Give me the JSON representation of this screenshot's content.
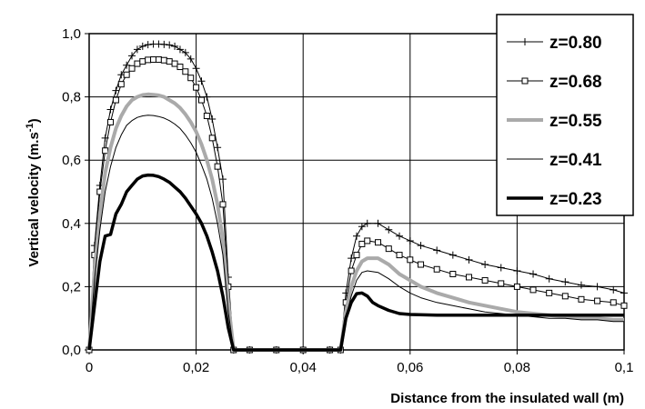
{
  "chart_data": {
    "type": "line",
    "title": "",
    "xlabel": "Distance from the insulated wall (m)",
    "ylabel": "Vertical velocity (m.s",
    "ylabel_sup": "-1",
    "ylabel_suffix": ")",
    "xlim": [
      0,
      0.1
    ],
    "ylim": [
      0,
      1.0
    ],
    "x_ticks": [
      0,
      0.02,
      0.04,
      0.06,
      0.08,
      0.1
    ],
    "x_tick_labels": [
      "0",
      "0,02",
      "0,04",
      "0,06",
      "0,08",
      "0,1"
    ],
    "y_ticks": [
      0,
      0.2,
      0.4,
      0.6,
      0.8,
      1.0
    ],
    "y_tick_labels": [
      "0,0",
      "0,2",
      "0,4",
      "0,6",
      "0,8",
      "1,0"
    ],
    "grid": true,
    "legend_position": "top-right",
    "series": [
      {
        "name": "z=0.80",
        "color": "#000000",
        "marker": "plus",
        "points": [
          [
            0,
            0
          ],
          [
            0.001,
            0.33
          ],
          [
            0.002,
            0.52
          ],
          [
            0.003,
            0.67
          ],
          [
            0.004,
            0.76
          ],
          [
            0.005,
            0.82
          ],
          [
            0.006,
            0.87
          ],
          [
            0.007,
            0.9
          ],
          [
            0.008,
            0.93
          ],
          [
            0.009,
            0.95
          ],
          [
            0.01,
            0.96
          ],
          [
            0.011,
            0.965
          ],
          [
            0.012,
            0.967
          ],
          [
            0.013,
            0.967
          ],
          [
            0.014,
            0.966
          ],
          [
            0.015,
            0.964
          ],
          [
            0.016,
            0.96
          ],
          [
            0.017,
            0.95
          ],
          [
            0.018,
            0.94
          ],
          [
            0.019,
            0.92
          ],
          [
            0.02,
            0.89
          ],
          [
            0.021,
            0.85
          ],
          [
            0.022,
            0.8
          ],
          [
            0.023,
            0.73
          ],
          [
            0.024,
            0.64
          ],
          [
            0.025,
            0.54
          ],
          [
            0.026,
            0.23
          ],
          [
            0.027,
            0
          ],
          [
            0.03,
            0
          ],
          [
            0.035,
            0
          ],
          [
            0.04,
            0
          ],
          [
            0.045,
            0
          ],
          [
            0.047,
            0
          ],
          [
            0.048,
            0.18
          ],
          [
            0.049,
            0.29
          ],
          [
            0.05,
            0.36
          ],
          [
            0.051,
            0.39
          ],
          [
            0.052,
            0.4
          ],
          [
            0.054,
            0.4
          ],
          [
            0.056,
            0.38
          ],
          [
            0.058,
            0.36
          ],
          [
            0.06,
            0.345
          ],
          [
            0.062,
            0.33
          ],
          [
            0.065,
            0.315
          ],
          [
            0.068,
            0.3
          ],
          [
            0.071,
            0.285
          ],
          [
            0.074,
            0.27
          ],
          [
            0.077,
            0.26
          ],
          [
            0.08,
            0.25
          ],
          [
            0.083,
            0.24
          ],
          [
            0.086,
            0.225
          ],
          [
            0.089,
            0.215
          ],
          [
            0.092,
            0.205
          ],
          [
            0.095,
            0.2
          ],
          [
            0.098,
            0.19
          ],
          [
            0.1,
            0.18
          ]
        ]
      },
      {
        "name": "z=0.68",
        "color": "#000000",
        "marker": "square",
        "points": [
          [
            0,
            0
          ],
          [
            0.001,
            0.3
          ],
          [
            0.002,
            0.5
          ],
          [
            0.003,
            0.63
          ],
          [
            0.004,
            0.72
          ],
          [
            0.005,
            0.79
          ],
          [
            0.006,
            0.84
          ],
          [
            0.007,
            0.87
          ],
          [
            0.008,
            0.89
          ],
          [
            0.009,
            0.905
          ],
          [
            0.01,
            0.912
          ],
          [
            0.011,
            0.917
          ],
          [
            0.012,
            0.918
          ],
          [
            0.013,
            0.918
          ],
          [
            0.014,
            0.916
          ],
          [
            0.015,
            0.912
          ],
          [
            0.016,
            0.905
          ],
          [
            0.017,
            0.895
          ],
          [
            0.018,
            0.88
          ],
          [
            0.019,
            0.86
          ],
          [
            0.02,
            0.83
          ],
          [
            0.021,
            0.79
          ],
          [
            0.022,
            0.74
          ],
          [
            0.023,
            0.67
          ],
          [
            0.024,
            0.58
          ],
          [
            0.025,
            0.46
          ],
          [
            0.026,
            0.2
          ],
          [
            0.027,
            0
          ],
          [
            0.03,
            0
          ],
          [
            0.035,
            0
          ],
          [
            0.04,
            0
          ],
          [
            0.045,
            0
          ],
          [
            0.047,
            0
          ],
          [
            0.048,
            0.15
          ],
          [
            0.049,
            0.25
          ],
          [
            0.05,
            0.3
          ],
          [
            0.051,
            0.335
          ],
          [
            0.052,
            0.345
          ],
          [
            0.054,
            0.34
          ],
          [
            0.056,
            0.32
          ],
          [
            0.058,
            0.3
          ],
          [
            0.06,
            0.285
          ],
          [
            0.062,
            0.27
          ],
          [
            0.065,
            0.255
          ],
          [
            0.068,
            0.24
          ],
          [
            0.071,
            0.23
          ],
          [
            0.074,
            0.22
          ],
          [
            0.077,
            0.21
          ],
          [
            0.08,
            0.2
          ],
          [
            0.083,
            0.19
          ],
          [
            0.086,
            0.18
          ],
          [
            0.089,
            0.17
          ],
          [
            0.092,
            0.16
          ],
          [
            0.095,
            0.155
          ],
          [
            0.098,
            0.15
          ],
          [
            0.1,
            0.14
          ]
        ]
      },
      {
        "name": "z=0.55",
        "color": "#aaaaaa",
        "marker": "none",
        "points": [
          [
            0,
            0
          ],
          [
            0.001,
            0.25
          ],
          [
            0.002,
            0.43
          ],
          [
            0.003,
            0.56
          ],
          [
            0.004,
            0.64
          ],
          [
            0.005,
            0.7
          ],
          [
            0.006,
            0.74
          ],
          [
            0.007,
            0.77
          ],
          [
            0.008,
            0.79
          ],
          [
            0.009,
            0.8
          ],
          [
            0.01,
            0.806
          ],
          [
            0.011,
            0.808
          ],
          [
            0.012,
            0.807
          ],
          [
            0.013,
            0.805
          ],
          [
            0.014,
            0.8
          ],
          [
            0.015,
            0.79
          ],
          [
            0.016,
            0.78
          ],
          [
            0.017,
            0.765
          ],
          [
            0.018,
            0.745
          ],
          [
            0.019,
            0.72
          ],
          [
            0.02,
            0.69
          ],
          [
            0.021,
            0.65
          ],
          [
            0.022,
            0.6
          ],
          [
            0.023,
            0.54
          ],
          [
            0.024,
            0.46
          ],
          [
            0.025,
            0.35
          ],
          [
            0.026,
            0.15
          ],
          [
            0.027,
            0
          ],
          [
            0.03,
            0
          ],
          [
            0.035,
            0
          ],
          [
            0.04,
            0
          ],
          [
            0.045,
            0
          ],
          [
            0.047,
            0
          ],
          [
            0.048,
            0.12
          ],
          [
            0.049,
            0.2
          ],
          [
            0.05,
            0.25
          ],
          [
            0.051,
            0.28
          ],
          [
            0.052,
            0.29
          ],
          [
            0.054,
            0.29
          ],
          [
            0.056,
            0.27
          ],
          [
            0.058,
            0.24
          ],
          [
            0.06,
            0.22
          ],
          [
            0.062,
            0.2
          ],
          [
            0.065,
            0.18
          ],
          [
            0.068,
            0.165
          ],
          [
            0.071,
            0.15
          ],
          [
            0.074,
            0.14
          ],
          [
            0.077,
            0.13
          ],
          [
            0.08,
            0.12
          ],
          [
            0.083,
            0.115
          ],
          [
            0.086,
            0.11
          ],
          [
            0.089,
            0.105
          ],
          [
            0.092,
            0.1
          ],
          [
            0.095,
            0.1
          ],
          [
            0.098,
            0.095
          ],
          [
            0.1,
            0.095
          ]
        ]
      },
      {
        "name": "z=0.41",
        "color": "#000000",
        "marker": "none",
        "points": [
          [
            0,
            0
          ],
          [
            0.001,
            0.22
          ],
          [
            0.002,
            0.38
          ],
          [
            0.003,
            0.5
          ],
          [
            0.004,
            0.58
          ],
          [
            0.005,
            0.64
          ],
          [
            0.006,
            0.68
          ],
          [
            0.007,
            0.71
          ],
          [
            0.008,
            0.725
          ],
          [
            0.009,
            0.735
          ],
          [
            0.01,
            0.74
          ],
          [
            0.011,
            0.742
          ],
          [
            0.012,
            0.741
          ],
          [
            0.013,
            0.738
          ],
          [
            0.014,
            0.733
          ],
          [
            0.015,
            0.725
          ],
          [
            0.016,
            0.714
          ],
          [
            0.017,
            0.7
          ],
          [
            0.018,
            0.68
          ],
          [
            0.019,
            0.655
          ],
          [
            0.02,
            0.625
          ],
          [
            0.021,
            0.585
          ],
          [
            0.022,
            0.54
          ],
          [
            0.023,
            0.48
          ],
          [
            0.024,
            0.4
          ],
          [
            0.025,
            0.3
          ],
          [
            0.026,
            0.12
          ],
          [
            0.027,
            0
          ],
          [
            0.03,
            0
          ],
          [
            0.035,
            0
          ],
          [
            0.04,
            0
          ],
          [
            0.045,
            0
          ],
          [
            0.047,
            0
          ],
          [
            0.048,
            0.1
          ],
          [
            0.049,
            0.17
          ],
          [
            0.05,
            0.22
          ],
          [
            0.051,
            0.245
          ],
          [
            0.052,
            0.25
          ],
          [
            0.054,
            0.245
          ],
          [
            0.056,
            0.225
          ],
          [
            0.058,
            0.2
          ],
          [
            0.06,
            0.18
          ],
          [
            0.062,
            0.165
          ],
          [
            0.065,
            0.15
          ],
          [
            0.068,
            0.14
          ],
          [
            0.071,
            0.13
          ],
          [
            0.074,
            0.12
          ],
          [
            0.077,
            0.115
          ],
          [
            0.08,
            0.11
          ],
          [
            0.083,
            0.105
          ],
          [
            0.086,
            0.1
          ],
          [
            0.089,
            0.1
          ],
          [
            0.092,
            0.095
          ],
          [
            0.095,
            0.095
          ],
          [
            0.098,
            0.09
          ],
          [
            0.1,
            0.09
          ]
        ]
      },
      {
        "name": "z=0.23",
        "color": "#000000",
        "marker": "none",
        "points": [
          [
            0,
            0
          ],
          [
            0.001,
            0.14
          ],
          [
            0.002,
            0.28
          ],
          [
            0.003,
            0.36
          ],
          [
            0.004,
            0.365
          ],
          [
            0.005,
            0.43
          ],
          [
            0.006,
            0.46
          ],
          [
            0.007,
            0.5
          ],
          [
            0.008,
            0.52
          ],
          [
            0.009,
            0.54
          ],
          [
            0.01,
            0.55
          ],
          [
            0.011,
            0.553
          ],
          [
            0.012,
            0.552
          ],
          [
            0.013,
            0.548
          ],
          [
            0.014,
            0.54
          ],
          [
            0.015,
            0.53
          ],
          [
            0.016,
            0.515
          ],
          [
            0.017,
            0.5
          ],
          [
            0.018,
            0.48
          ],
          [
            0.019,
            0.455
          ],
          [
            0.02,
            0.43
          ],
          [
            0.021,
            0.4
          ],
          [
            0.022,
            0.36
          ],
          [
            0.023,
            0.31
          ],
          [
            0.024,
            0.25
          ],
          [
            0.025,
            0.17
          ],
          [
            0.026,
            0.07
          ],
          [
            0.027,
            0
          ],
          [
            0.03,
            0
          ],
          [
            0.035,
            0
          ],
          [
            0.04,
            0
          ],
          [
            0.045,
            0
          ],
          [
            0.047,
            0
          ],
          [
            0.048,
            0.1
          ],
          [
            0.049,
            0.15
          ],
          [
            0.05,
            0.178
          ],
          [
            0.051,
            0.18
          ],
          [
            0.052,
            0.17
          ],
          [
            0.053,
            0.15
          ],
          [
            0.054,
            0.14
          ],
          [
            0.056,
            0.125
          ],
          [
            0.058,
            0.115
          ],
          [
            0.06,
            0.112
          ],
          [
            0.065,
            0.11
          ],
          [
            0.07,
            0.11
          ],
          [
            0.075,
            0.11
          ],
          [
            0.08,
            0.11
          ],
          [
            0.085,
            0.11
          ],
          [
            0.09,
            0.11
          ],
          [
            0.095,
            0.11
          ],
          [
            0.1,
            0.11
          ]
        ]
      }
    ]
  }
}
